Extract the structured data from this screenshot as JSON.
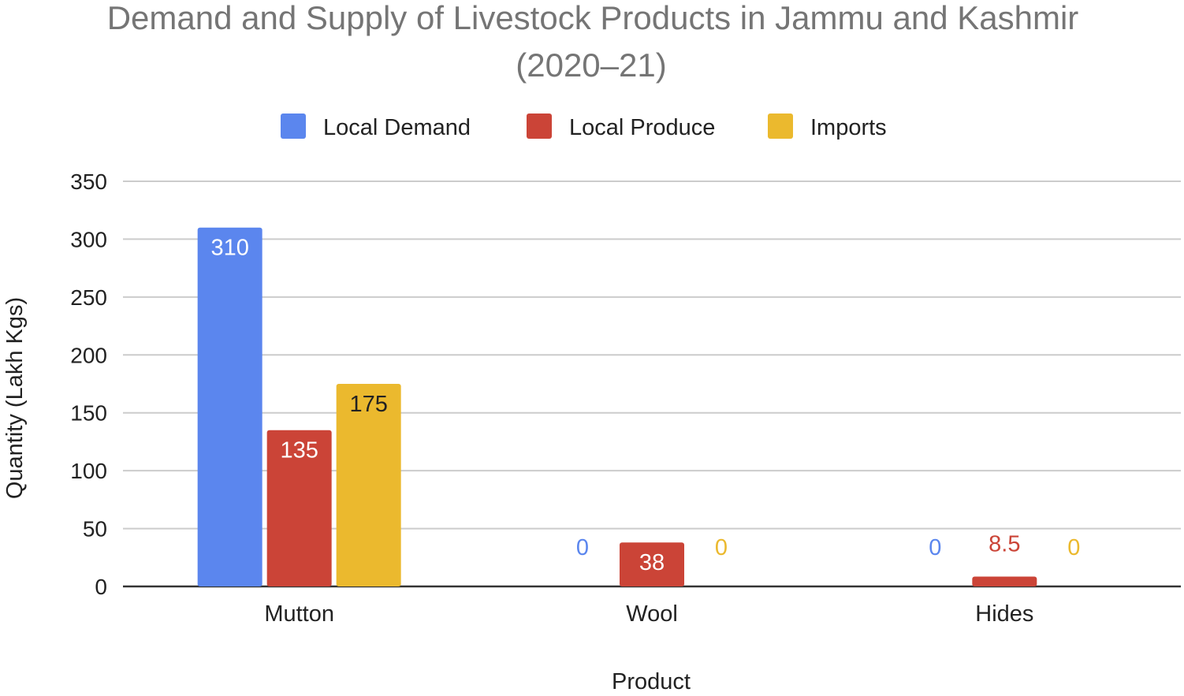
{
  "chart_data": {
    "type": "bar",
    "title_line1": "Demand and Supply of Livestock Products in Jammu and Kashmir",
    "title_line2": "(2020–21)",
    "xlabel": "Product",
    "ylabel": "Quantity (Lakh Kgs)",
    "categories": [
      "Mutton",
      "Wool",
      "Hides"
    ],
    "series": [
      {
        "name": "Local Demand",
        "color": "#5B86EE",
        "values": [
          310,
          0,
          0
        ],
        "labels": [
          "310",
          "0",
          "0"
        ]
      },
      {
        "name": "Local Produce",
        "color": "#CB4437",
        "values": [
          135,
          38,
          8.5
        ],
        "labels": [
          "135",
          "38",
          "8.5"
        ]
      },
      {
        "name": "Imports",
        "color": "#EBB92E",
        "values": [
          175,
          0,
          0
        ],
        "labels": [
          "175",
          "0",
          "0"
        ]
      }
    ],
    "ylim": [
      0,
      350
    ],
    "yticks": [
      0,
      50,
      100,
      150,
      200,
      250,
      300,
      350
    ],
    "grid": true,
    "legend_position": "top"
  }
}
